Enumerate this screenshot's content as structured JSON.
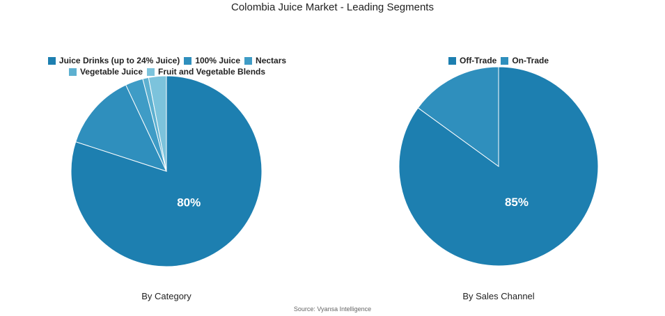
{
  "title": "Colombia Juice Market - Leading Segments",
  "source": "Source: Vyansa Intelligence",
  "chart_data": [
    {
      "type": "pie",
      "subtitle": "By Category",
      "legend_position": "top",
      "categories": [
        "Juice Drinks (up to 24% Juice)",
        "100% Juice",
        "Nectars",
        "Vegetable Juice",
        "Fruit and Vegetable Blends"
      ],
      "values": [
        80,
        13,
        3,
        1,
        3
      ],
      "colors": [
        "#1d7fb0",
        "#2f8fbd",
        "#3f9cc6",
        "#5db0d0",
        "#7cc3dc"
      ],
      "data_labels": [
        "80%"
      ]
    },
    {
      "type": "pie",
      "subtitle": "By Sales Channel",
      "legend_position": "top",
      "categories": [
        "Off-Trade",
        "On-Trade"
      ],
      "values": [
        85,
        15
      ],
      "colors": [
        "#1d7fb0",
        "#2f8fbd"
      ],
      "data_labels": [
        "85%"
      ]
    }
  ]
}
